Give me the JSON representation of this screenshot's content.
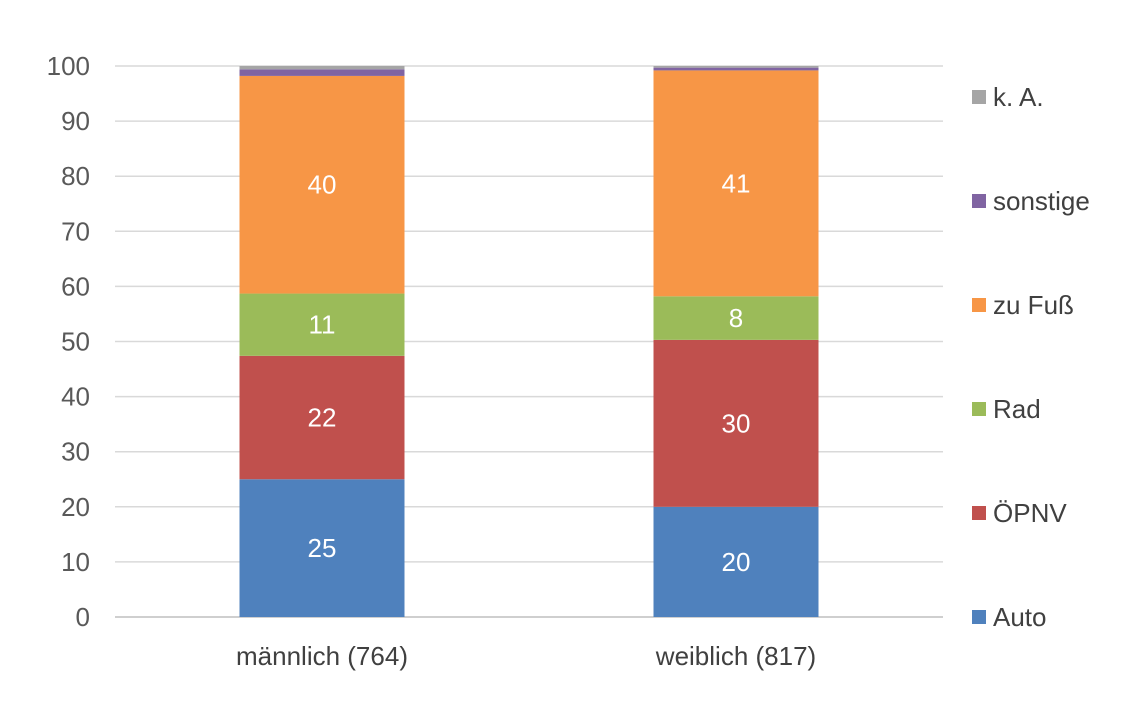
{
  "chart_data": {
    "type": "bar",
    "stacked": true,
    "categories": [
      "männlich (764)",
      "weiblich (817)"
    ],
    "series": [
      {
        "name": "Auto",
        "color": "#4f81bd",
        "values": [
          25,
          20
        ],
        "labels": [
          "25",
          "20"
        ]
      },
      {
        "name": "ÖPNV",
        "color": "#c0504d",
        "values": [
          22.4,
          30.3
        ],
        "labels": [
          "22",
          "30"
        ]
      },
      {
        "name": "Rad",
        "color": "#9bbb59",
        "values": [
          11.3,
          7.9
        ],
        "labels": [
          "11",
          "8"
        ]
      },
      {
        "name": "zu Fuß",
        "color": "#f79646",
        "values": [
          39.5,
          41
        ],
        "labels": [
          "40",
          "41"
        ]
      },
      {
        "name": "sonstige",
        "color": "#8064a2",
        "values": [
          1.2,
          0.5
        ],
        "labels": [
          "",
          ""
        ]
      },
      {
        "name": "k. A.",
        "color": "#a5a5a5",
        "values": [
          0.6,
          0.3
        ],
        "labels": [
          "",
          ""
        ]
      }
    ],
    "ylim": [
      0,
      100
    ],
    "yticks": [
      "0",
      "10",
      "20",
      "30",
      "40",
      "50",
      "60",
      "70",
      "80",
      "90",
      "100"
    ],
    "grid": true,
    "legend_position": "right"
  }
}
